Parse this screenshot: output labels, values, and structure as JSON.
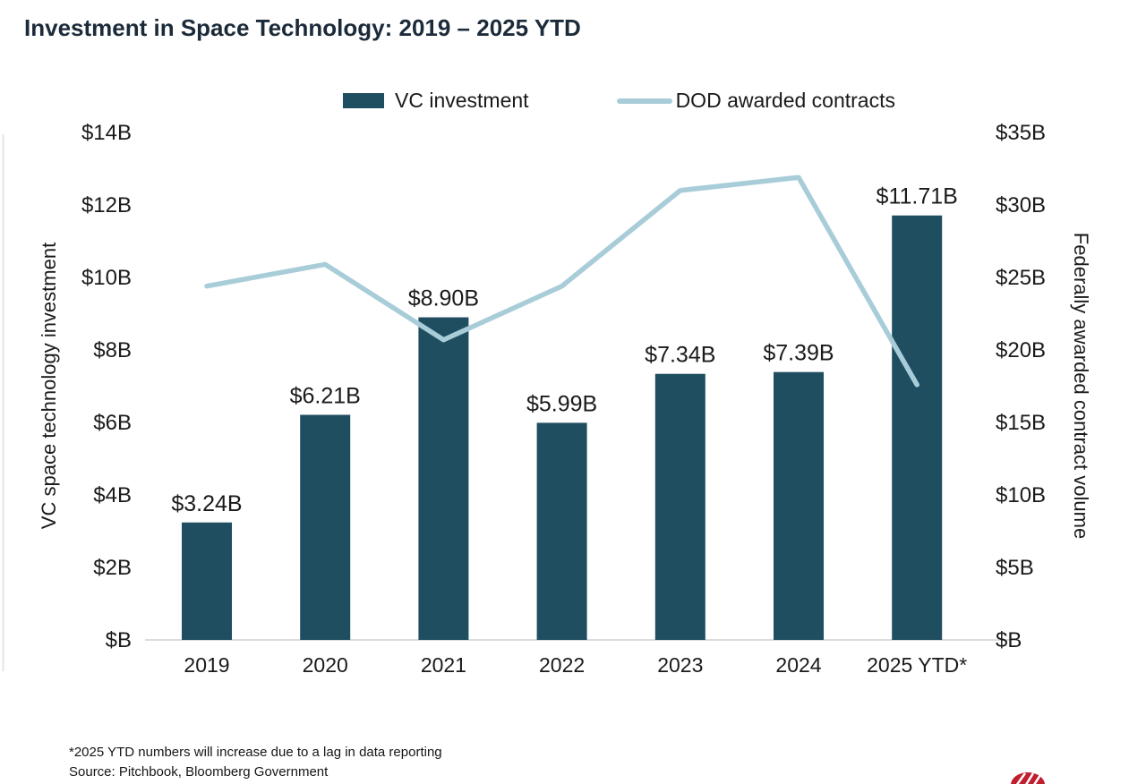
{
  "page": {
    "title": "Investment in Space Technology: 2019 – 2025 YTD"
  },
  "legend": {
    "items": [
      {
        "label": "VC investment",
        "swatch": "bar",
        "color": "#1f4e61"
      },
      {
        "label": "DOD awarded contracts",
        "swatch": "line",
        "color": "#a8cdd8"
      }
    ]
  },
  "chart_data": {
    "type": "combo",
    "title": "Investment in Space Technology: 2019 – 2025 YTD",
    "categories": [
      "2019",
      "2020",
      "2021",
      "2022",
      "2023",
      "2024",
      "2025 YTD*"
    ],
    "series": [
      {
        "name": "VC investment",
        "type": "bar",
        "axis": "left",
        "color": "#1f4e61",
        "values": [
          3.24,
          6.21,
          8.9,
          5.99,
          7.34,
          7.39,
          11.71
        ],
        "data_labels": [
          "$3.24B",
          "$6.21B",
          "$8.90B",
          "$5.99B",
          "$7.34B",
          "$7.39B",
          "$11.71B"
        ]
      },
      {
        "name": "DOD awarded contracts",
        "type": "line",
        "axis": "right",
        "color": "#a8cdd8",
        "values": [
          24.4,
          25.9,
          20.7,
          24.4,
          31.0,
          31.9,
          17.6
        ]
      }
    ],
    "left_axis": {
      "title": "VC space technology investment",
      "min": 0,
      "max": 14,
      "tick_step": 2,
      "tick_labels": [
        "$14B",
        "$12B",
        "$10B",
        "$8B",
        "$6B",
        "$4B",
        "$2B",
        "$B"
      ]
    },
    "right_axis": {
      "title": "Federally awarded contract volume",
      "min": 0,
      "max": 35,
      "tick_step": 5,
      "tick_labels": [
        "$35B",
        "$30B",
        "$25B",
        "$20B",
        "$15B",
        "$10B",
        "$5B",
        "$B"
      ]
    },
    "grid": false,
    "legend_position": "top-center",
    "axis_line_color": "#d9dde0",
    "text_color": "#1a1a1a"
  },
  "footnotes": {
    "line1": "*2025 YTD numbers will increase due to a lag in data reporting",
    "line2": "Source: Pitchbook, Bloomberg Government"
  },
  "logo": {
    "color": "#c01f2f"
  }
}
